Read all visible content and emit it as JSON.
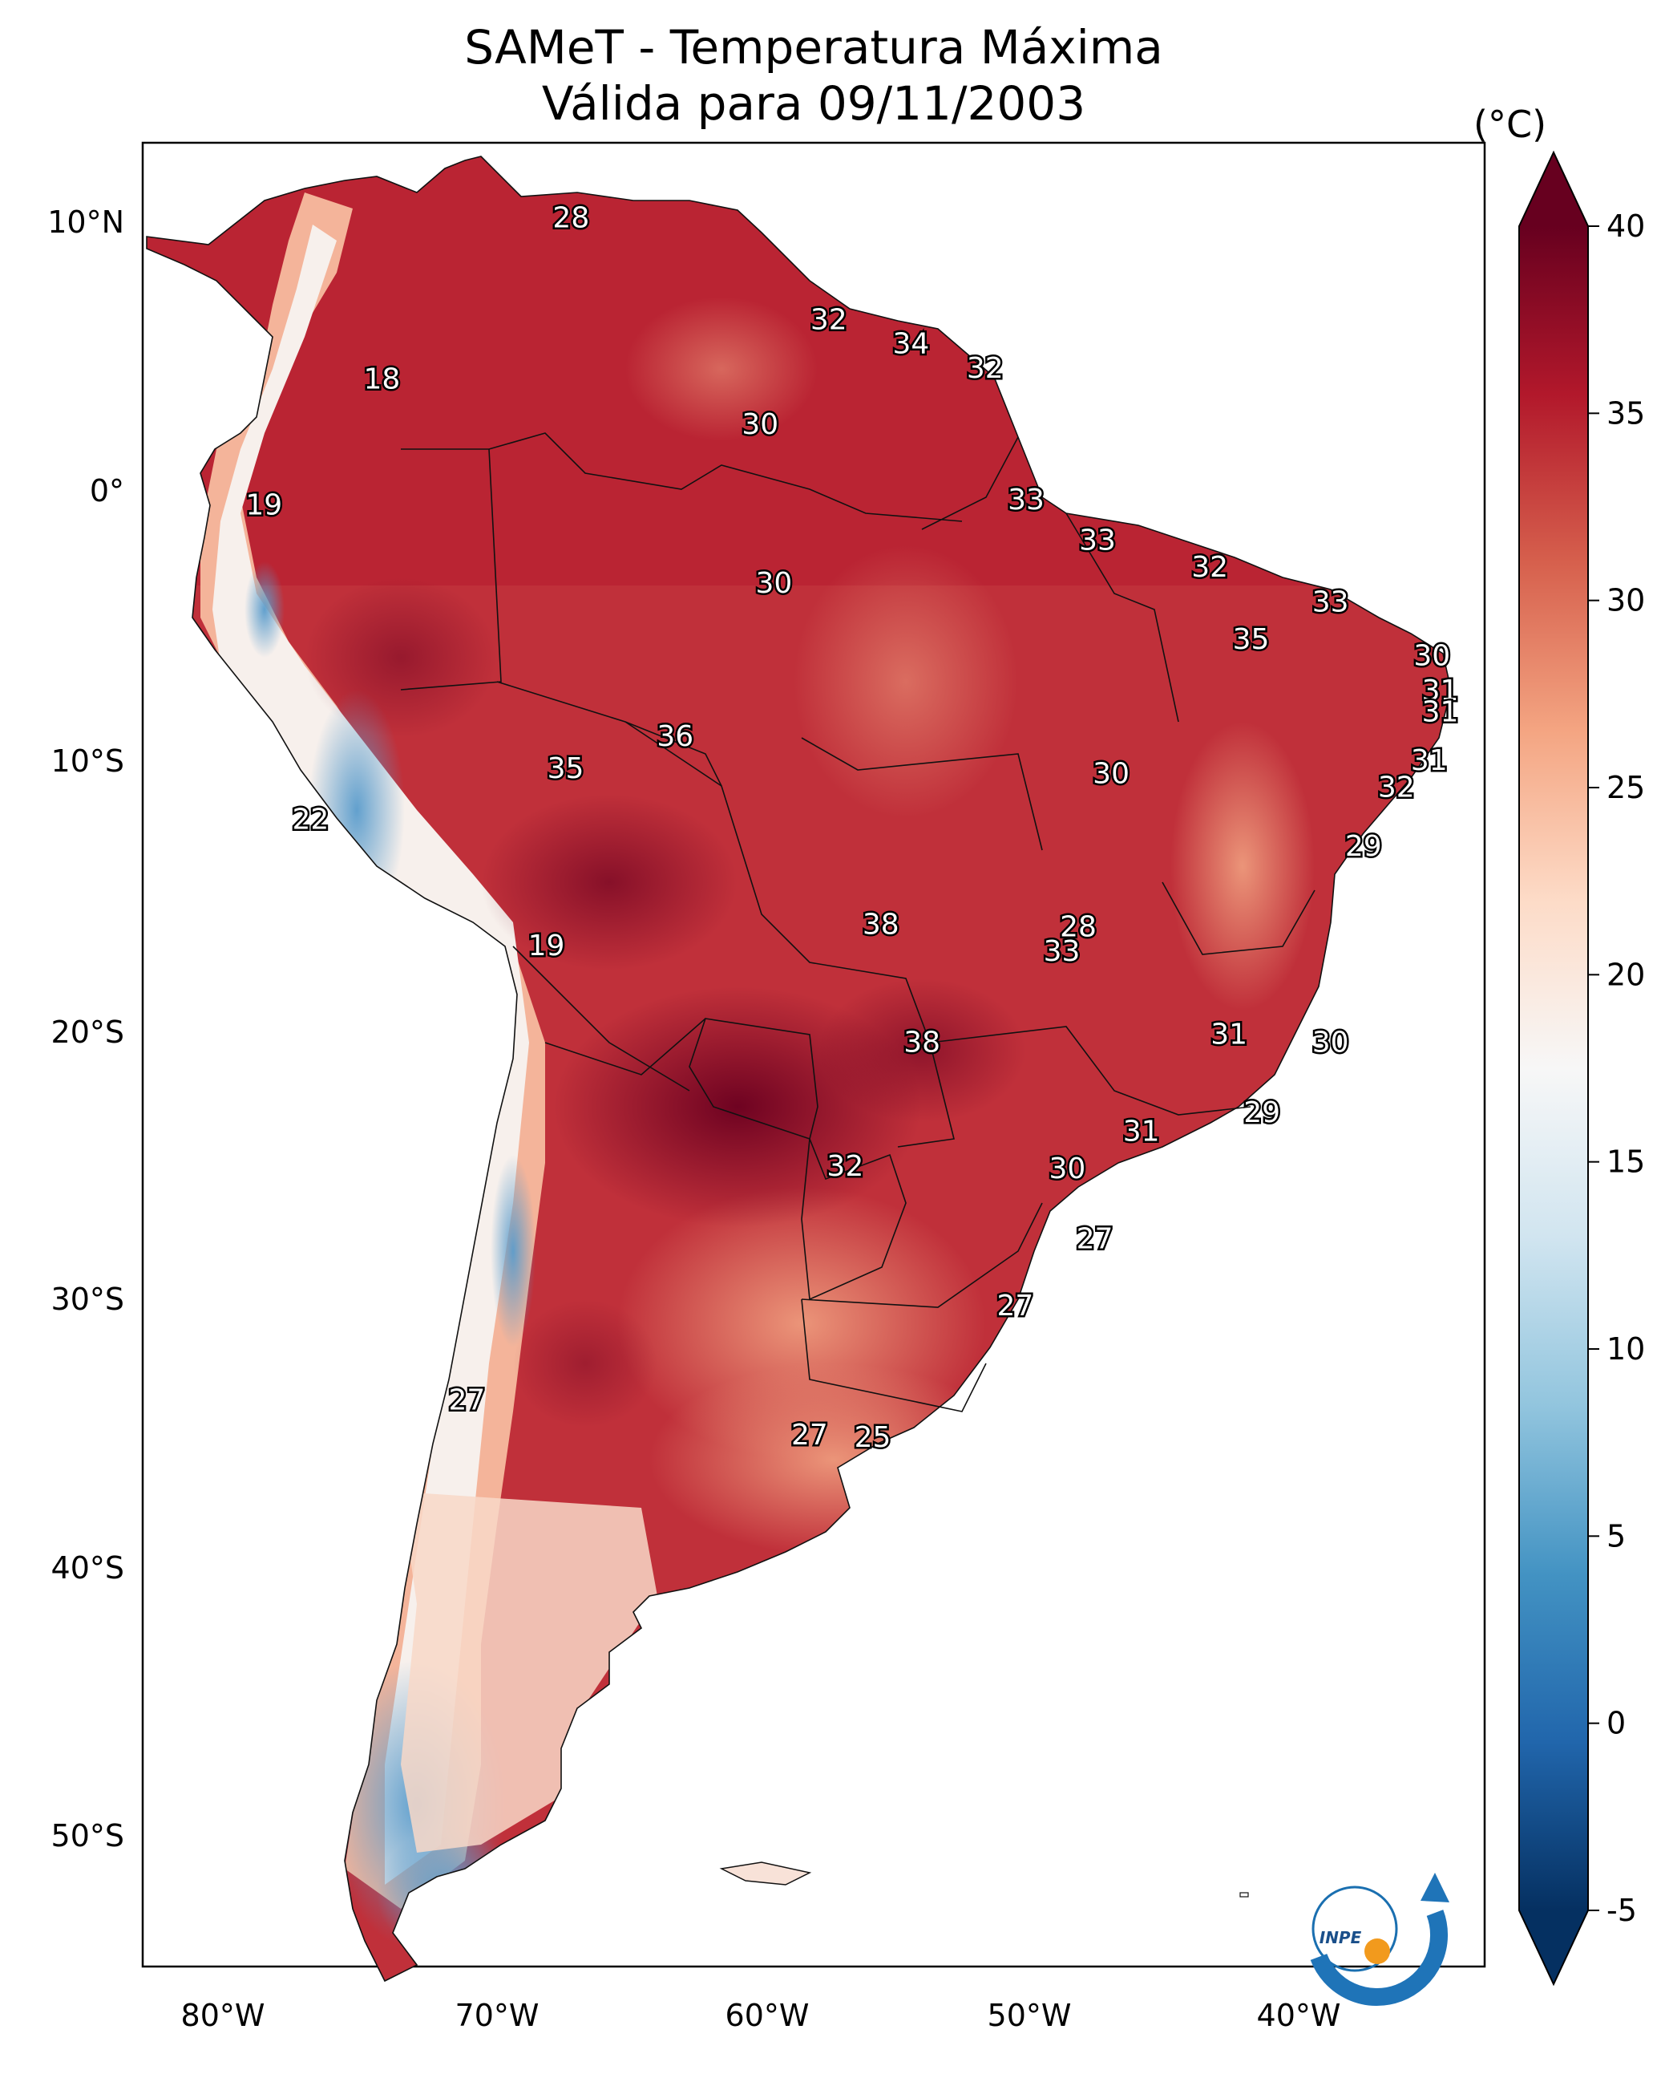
{
  "title_line1": "SAMeT - Temperatura Máxima",
  "title_line2": "Válida para 09/11/2003",
  "colorbar": {
    "unit": "(°C)",
    "min": -5,
    "max": 40,
    "ticks": [
      "40",
      "35",
      "30",
      "25",
      "20",
      "15",
      "10",
      "5",
      "0",
      "-5"
    ],
    "colors": [
      "#053061",
      "#2166ac",
      "#4393c3",
      "#92c5de",
      "#d1e5f0",
      "#f7f7f7",
      "#fddbc7",
      "#f4a582",
      "#d6604d",
      "#b2182b",
      "#67001f"
    ]
  },
  "axes": {
    "lon_labels": [
      "80°W",
      "70°W",
      "60°W",
      "50°W",
      "40°W"
    ],
    "lat_labels": [
      "10°N",
      "0°",
      "10°S",
      "20°S",
      "30°S",
      "40°S",
      "50°S"
    ]
  },
  "contour_labels": [
    {
      "text": "28",
      "lon": -67.3,
      "lat": 10.5
    },
    {
      "text": "18",
      "lon": -74.2,
      "lat": 4.5
    },
    {
      "text": "32",
      "lon": -57.9,
      "lat": 6.7
    },
    {
      "text": "34",
      "lon": -54.9,
      "lat": 5.8
    },
    {
      "text": "32",
      "lon": -52.2,
      "lat": 4.9
    },
    {
      "text": "30",
      "lon": -60.4,
      "lat": 2.8
    },
    {
      "text": "19",
      "lon": -78.5,
      "lat": -0.2
    },
    {
      "text": "33",
      "lon": -50.7,
      "lat": 0.0
    },
    {
      "text": "33",
      "lon": -48.1,
      "lat": -1.5
    },
    {
      "text": "32",
      "lon": -44.0,
      "lat": -2.5
    },
    {
      "text": "30",
      "lon": -59.9,
      "lat": -3.1
    },
    {
      "text": "33",
      "lon": -39.6,
      "lat": -3.8
    },
    {
      "text": "35",
      "lon": -42.5,
      "lat": -5.2
    },
    {
      "text": "30",
      "lon": -35.9,
      "lat": -5.8
    },
    {
      "text": "31",
      "lon": -35.6,
      "lat": -7.1
    },
    {
      "text": "31",
      "lon": -35.6,
      "lat": -7.9
    },
    {
      "text": "36",
      "lon": -63.5,
      "lat": -8.8
    },
    {
      "text": "35",
      "lon": -67.5,
      "lat": -10.0
    },
    {
      "text": "30",
      "lon": -47.6,
      "lat": -10.2
    },
    {
      "text": "31",
      "lon": -36.0,
      "lat": -9.7
    },
    {
      "text": "32",
      "lon": -37.2,
      "lat": -10.7
    },
    {
      "text": "22",
      "lon": -76.8,
      "lat": -11.9
    },
    {
      "text": "29",
      "lon": -38.4,
      "lat": -12.9
    },
    {
      "text": "38",
      "lon": -56.0,
      "lat": -15.8
    },
    {
      "text": "28",
      "lon": -48.8,
      "lat": -15.9
    },
    {
      "text": "33",
      "lon": -49.4,
      "lat": -16.8
    },
    {
      "text": "19",
      "lon": -68.2,
      "lat": -16.6
    },
    {
      "text": "38",
      "lon": -54.5,
      "lat": -20.2
    },
    {
      "text": "31",
      "lon": -43.3,
      "lat": -19.9
    },
    {
      "text": "30",
      "lon": -39.6,
      "lat": -20.2
    },
    {
      "text": "29",
      "lon": -42.1,
      "lat": -22.8
    },
    {
      "text": "31",
      "lon": -46.5,
      "lat": -23.5
    },
    {
      "text": "32",
      "lon": -57.3,
      "lat": -24.8
    },
    {
      "text": "30",
      "lon": -49.2,
      "lat": -24.9
    },
    {
      "text": "27",
      "lon": -48.2,
      "lat": -27.5
    },
    {
      "text": "27",
      "lon": -51.1,
      "lat": -30.0
    },
    {
      "text": "27",
      "lon": -71.1,
      "lat": -33.5
    },
    {
      "text": "27",
      "lon": -58.6,
      "lat": -34.8
    },
    {
      "text": "25",
      "lon": -56.3,
      "lat": -34.9
    }
  ],
  "logo": {
    "text": "INPE"
  }
}
